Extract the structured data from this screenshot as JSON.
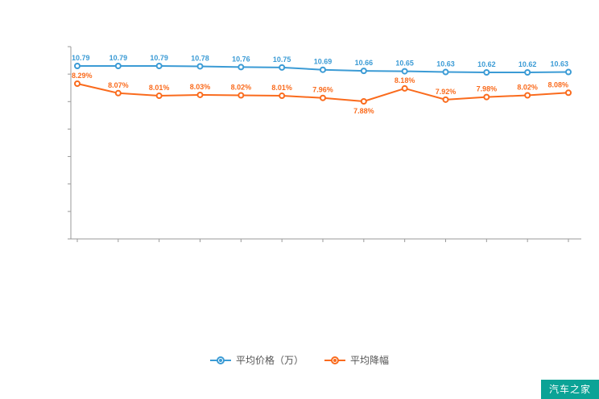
{
  "watermark": {
    "text": "汽车之家",
    "bg_color": "#0BA396",
    "text_color": "#ffffff"
  },
  "legend": [
    {
      "label": "平均价格（万）",
      "color": "#3B9BD5"
    },
    {
      "label": "平均降幅",
      "color": "#FA6B1D"
    }
  ],
  "chart_data": {
    "type": "line",
    "title": "",
    "xlabel": "",
    "ylabel": "",
    "x_axis_labels_visible": false,
    "y_axis_labels_visible": false,
    "grid": false,
    "legend_position": "bottom",
    "categories": [
      "",
      "",
      "",
      "",
      "",
      "",
      "",
      "",
      "",
      "",
      "",
      "",
      ""
    ],
    "series": [
      {
        "name": "平均价格（万）",
        "color": "#3B9BD5",
        "suffix": "",
        "values": [
          10.79,
          10.79,
          10.79,
          10.78,
          10.76,
          10.75,
          10.69,
          10.66,
          10.65,
          10.63,
          10.62,
          10.62,
          10.63
        ]
      },
      {
        "name": "平均降幅",
        "color": "#FA6B1D",
        "suffix": "%",
        "values": [
          8.29,
          8.07,
          8.01,
          8.03,
          8.02,
          8.01,
          7.96,
          7.88,
          8.18,
          7.92,
          7.98,
          8.02,
          8.08
        ],
        "label_below_indices": [
          7
        ]
      }
    ],
    "axis_color": "#9a9a9a",
    "label_font_size": 9
  }
}
